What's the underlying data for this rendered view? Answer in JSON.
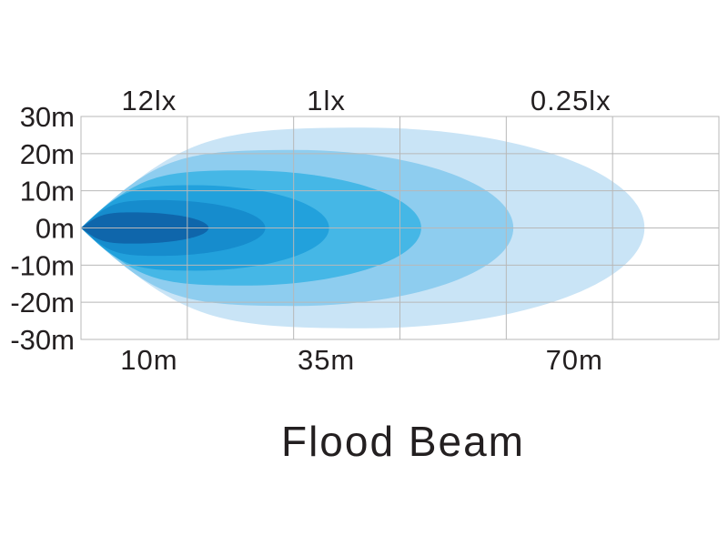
{
  "chart_data": {
    "type": "area",
    "title": "Flood Beam",
    "xlabel": "",
    "ylabel": "",
    "y_ticks": [
      "30m",
      "20m",
      "10m",
      "0m",
      "-10m",
      "-20m",
      "-30m"
    ],
    "ylim": [
      -30,
      30
    ],
    "xlim": [
      0,
      90
    ],
    "grid": true,
    "x_distance_labels": [
      {
        "x": 10,
        "label": "10m"
      },
      {
        "x": 35,
        "label": "35m"
      },
      {
        "x": 70,
        "label": "70m"
      }
    ],
    "lux_labels": [
      {
        "x": 10,
        "label": "12lx"
      },
      {
        "x": 35,
        "label": "1lx"
      },
      {
        "x": 70,
        "label": "0.25lx"
      }
    ],
    "series": [
      {
        "reach": 79.5,
        "half_width": 27,
        "peak_at": 40,
        "color": "#c9e4f6"
      },
      {
        "reach": 61.0,
        "half_width": 21,
        "peak_at": 30,
        "color": "#8ecdef"
      },
      {
        "reach": 48.0,
        "half_width": 15.5,
        "peak_at": 23,
        "color": "#45b7e6"
      },
      {
        "reach": 35.0,
        "half_width": 11.5,
        "peak_at": 16,
        "color": "#22a1dc"
      },
      {
        "reach": 26.0,
        "half_width": 7.5,
        "peak_at": 11,
        "color": "#168ccd"
      },
      {
        "reach": 18.0,
        "half_width": 4.2,
        "peak_at": 7.5,
        "color": "#0f66ab"
      }
    ]
  }
}
